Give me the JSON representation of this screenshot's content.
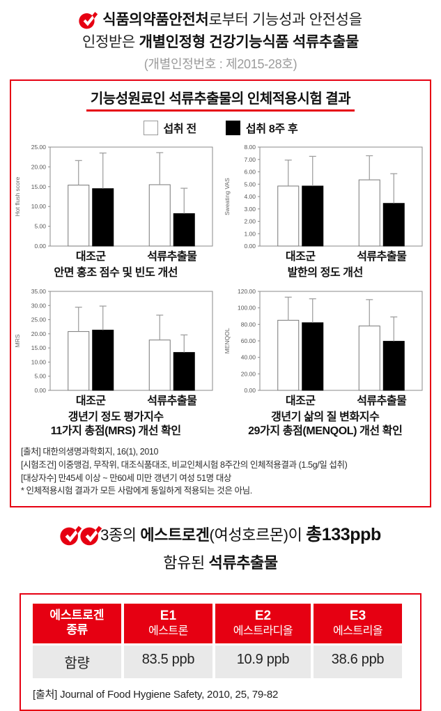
{
  "colors": {
    "red": "#e60012",
    "gray_text": "#9b9b9b",
    "table_row_bg": "#e9e9e9"
  },
  "header": {
    "line1_bold": "식품의약품안전처",
    "line1_rest": "로부터 기능성과 안전성을",
    "line2_pre": "인정받은 ",
    "line2_bold": "개별인정형 건강기능식품 석류추출물",
    "cert_number": "(개별인정번호 : 제2015-28호)"
  },
  "clinical_box": {
    "title": "기능성원료인 석류추출물의 인체적용시험 결과",
    "legend": [
      {
        "label": "섭취 전",
        "fill": "#ffffff"
      },
      {
        "label": "섭취 8주 후",
        "fill": "#000000"
      }
    ],
    "footnotes": [
      "[출처] 대한의생명과학회지, 16(1), 2010",
      "[시험조건] 이중맹검, 무작위, 대조식품대조, 비교인체시험 8주간의 인체적용결과 (1.5g/일 섭취)",
      "[대상자수] 만45세 이상 ~ 만60세 미만 갱년기 여성 51명 대상",
      "* 인체적용시험 결과가 모든 사람에게 동일하게 적용되는 것은 아님."
    ]
  },
  "chart_data": [
    {
      "type": "bar",
      "ylabel": "Hot flush score",
      "ylim": [
        0,
        25
      ],
      "ystep": 5,
      "tick_decimals": 2,
      "categories": [
        "대조군",
        "석류추출물"
      ],
      "series": [
        {
          "name": "섭취 전",
          "fill": "#ffffff",
          "values": [
            15.4,
            15.5
          ],
          "err_top": [
            21.6,
            23.6
          ]
        },
        {
          "name": "섭취 8주 후",
          "fill": "#000000",
          "values": [
            14.5,
            8.2
          ],
          "err_top": [
            23.5,
            14.6
          ]
        }
      ],
      "caption": [
        "안면 홍조 점수 및 빈도 개선"
      ]
    },
    {
      "type": "bar",
      "ylabel": "Sweating VAS",
      "ylim": [
        0,
        8
      ],
      "ystep": 1,
      "tick_decimals": 2,
      "categories": [
        "대조군",
        "석류추출물"
      ],
      "series": [
        {
          "name": "섭취 전",
          "fill": "#ffffff",
          "values": [
            4.85,
            5.35
          ],
          "err_top": [
            6.95,
            7.3
          ]
        },
        {
          "name": "섭취 8주 후",
          "fill": "#000000",
          "values": [
            4.85,
            3.45
          ],
          "err_top": [
            7.25,
            5.85
          ]
        }
      ],
      "caption": [
        "발한의 정도 개선"
      ]
    },
    {
      "type": "bar",
      "ylabel": "MRS",
      "ylim": [
        0,
        35
      ],
      "ystep": 5,
      "tick_decimals": 2,
      "categories": [
        "대조군",
        "석류추출물"
      ],
      "series": [
        {
          "name": "섭취 전",
          "fill": "#ffffff",
          "values": [
            20.8,
            17.8
          ],
          "err_top": [
            29.4,
            26.6
          ]
        },
        {
          "name": "섭취 8주 후",
          "fill": "#000000",
          "values": [
            21.3,
            13.4
          ],
          "err_top": [
            29.8,
            19.6
          ]
        }
      ],
      "caption": [
        "갱년기 정도 평가지수",
        "11가지 총점(MRS) 개선 확인"
      ]
    },
    {
      "type": "bar",
      "ylabel": "MENQOL",
      "ylim": [
        0,
        120
      ],
      "ystep": 20,
      "tick_decimals": 2,
      "categories": [
        "대조군",
        "석류추출물"
      ],
      "series": [
        {
          "name": "섭취 전",
          "fill": "#ffffff",
          "values": [
            85,
            78
          ],
          "err_top": [
            113,
            110
          ]
        },
        {
          "name": "섭취 8주 후",
          "fill": "#000000",
          "values": [
            82,
            59.5
          ],
          "err_top": [
            111,
            89
          ]
        }
      ],
      "caption": [
        "갱년기 삶의 질 변화지수",
        "29가지 총점(MENQOL) 개선 확인"
      ]
    }
  ],
  "estrogen_section": {
    "line1_pre": "3종의 ",
    "line1_bold": "에스트로겐",
    "line1_mid": "(여성호르몬)이 ",
    "line1_value": "총133ppb",
    "line2_pre": "함유된 ",
    "line2_bold": "석류추출물"
  },
  "estrogen_table": {
    "header": [
      {
        "line1": "에스트로겐",
        "line2": "종류"
      },
      {
        "line1": "E1",
        "line2": "에스트론"
      },
      {
        "line1": "E2",
        "line2": "에스트라디올"
      },
      {
        "line1": "E3",
        "line2": "에스트리올"
      }
    ],
    "row_label": "함량",
    "values": [
      "83.5 ppb",
      "10.9 ppb",
      "38.6 ppb"
    ],
    "source": "[출처] Journal of Food Hygiene Safety, 2010, 25, 79-82"
  }
}
